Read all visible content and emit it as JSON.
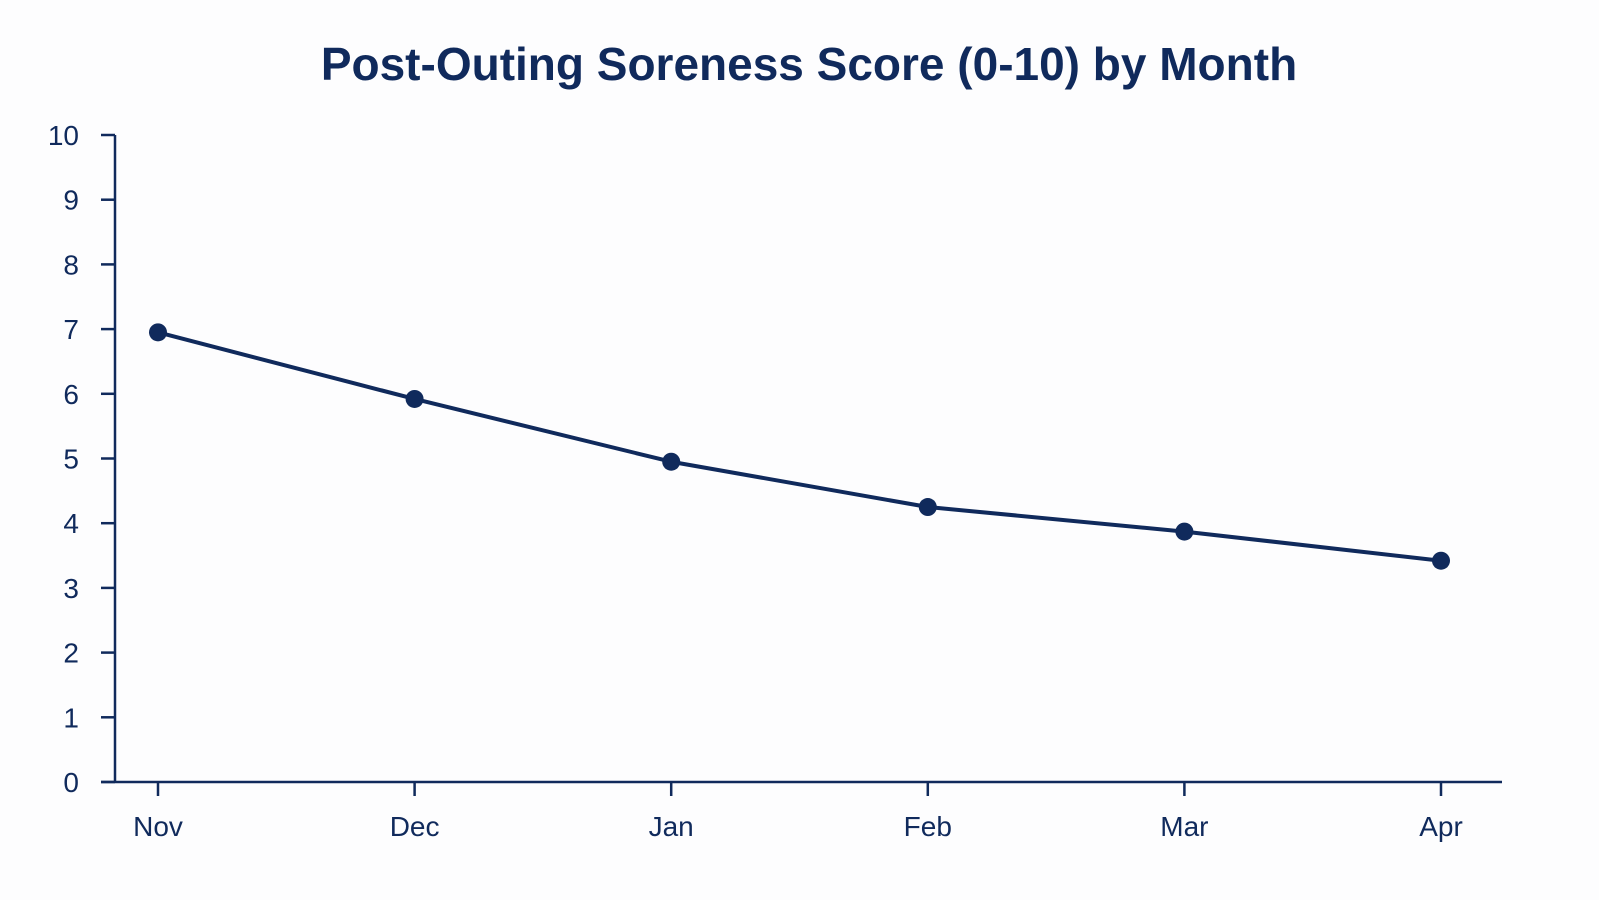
{
  "colors": {
    "background": "#fdfdfe",
    "primary": "#102a5c"
  },
  "chart_data": {
    "type": "line",
    "title": "Post-Outing Soreness Score (0-10) by Month",
    "xlabel": "",
    "ylabel": "",
    "categories": [
      "Nov",
      "Dec",
      "Jan",
      "Feb",
      "Mar",
      "Apr"
    ],
    "series": [
      {
        "values": [
          6.95,
          5.92,
          4.95,
          4.25,
          3.87,
          3.42
        ]
      }
    ],
    "ylim": [
      0,
      10
    ],
    "yticks": [
      "0",
      "1",
      "2",
      "3",
      "4",
      "5",
      "6",
      "7",
      "8",
      "9",
      "10"
    ],
    "grid": false,
    "legend": "none",
    "markers": true
  }
}
